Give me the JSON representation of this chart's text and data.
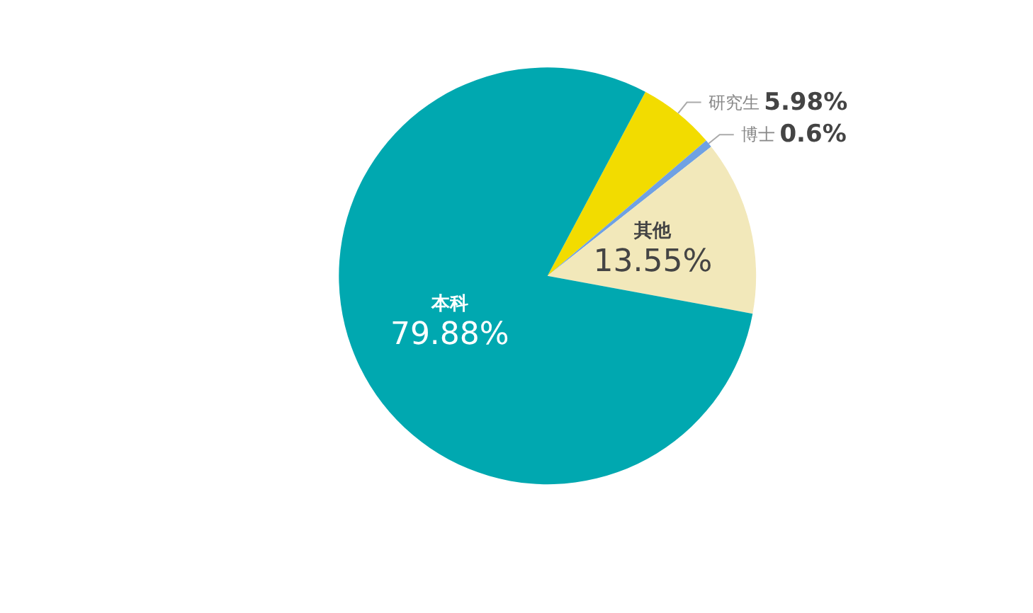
{
  "chart_data": {
    "type": "pie",
    "categories": [
      "研究生",
      "博士",
      "其他",
      "本科"
    ],
    "values": [
      5.98,
      0.6,
      13.55,
      79.88
    ],
    "value_labels": [
      "5.98%",
      "0.6%",
      "13.55%",
      "79.88%"
    ],
    "colors": [
      "#f2dc00",
      "#6fa1e3",
      "#f2e8ba",
      "#00a8b0"
    ],
    "legend": false
  }
}
